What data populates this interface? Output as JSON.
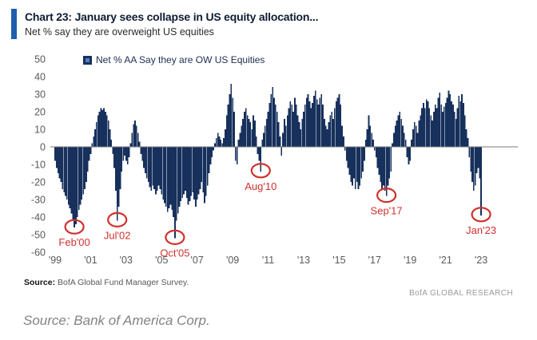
{
  "header": {
    "title": "Chart 23: January sees collapse in US equity allocation...",
    "subtitle": "Net % say they are overweight US equities"
  },
  "legend": {
    "label": "Net % AA Say they are OW US Equities"
  },
  "colors": {
    "accent_blue": "#1c5fac",
    "bar_navy": "#17305c",
    "annotation_red": "#d0312d",
    "axis_gray": "#7a7a7a",
    "tick_gray": "#595959"
  },
  "chart_data": {
    "type": "bar",
    "title": "Net % AA Say they are OW US Equities",
    "start_month": "1999-01",
    "end_month": "2023-01",
    "ylim": [
      -60,
      50
    ],
    "yticks": [
      50,
      40,
      30,
      20,
      10,
      0,
      -10,
      -20,
      -30,
      -40,
      -50,
      -60
    ],
    "xtick_labels": [
      "'99",
      "'01",
      "'03",
      "'05",
      "'07",
      "'09",
      "'11",
      "'13",
      "'15",
      "'17",
      "'19",
      "'21",
      "'23"
    ],
    "xtick_interval_months": 24,
    "grid": false,
    "legend_position": "top-left",
    "values": [
      -8,
      -12,
      -15,
      -18,
      -20,
      -24,
      -26,
      -28,
      -30,
      -33,
      -35,
      -38,
      -42,
      -46,
      -44,
      -40,
      -36,
      -33,
      -30,
      -27,
      -24,
      -20,
      -14,
      -8,
      -4,
      2,
      6,
      10,
      14,
      18,
      20,
      22,
      21,
      22,
      20,
      18,
      15,
      10,
      4,
      -4,
      -12,
      -25,
      -42,
      -34,
      -24,
      -14,
      -8,
      -5,
      -8,
      -10,
      -6,
      2,
      8,
      13,
      15,
      12,
      8,
      3,
      -4,
      -8,
      -12,
      -15,
      -18,
      -20,
      -23,
      -25,
      -22,
      -24,
      -27,
      -25,
      -22,
      -24,
      -27,
      -30,
      -32,
      -34,
      -37,
      -35,
      -33,
      -36,
      -40,
      -52,
      -42,
      -38,
      -34,
      -31,
      -29,
      -27,
      -25,
      -29,
      -33,
      -31,
      -28,
      -26,
      -30,
      -34,
      -30,
      -27,
      -24,
      -20,
      -26,
      -32,
      -28,
      -22,
      -15,
      -10,
      -6,
      -2,
      2,
      5,
      8,
      6,
      4,
      2,
      5,
      10,
      18,
      24,
      30,
      36,
      28,
      20,
      -8,
      -10,
      4,
      8,
      12,
      16,
      20,
      22,
      18,
      16,
      14,
      10,
      18,
      15,
      6,
      -4,
      -8,
      -14,
      4,
      8,
      12,
      16,
      20,
      25,
      30,
      34,
      28,
      24,
      20,
      14,
      6,
      -5,
      8,
      16,
      12,
      18,
      22,
      26,
      24,
      20,
      28,
      24,
      18,
      14,
      10,
      16,
      20,
      24,
      28,
      30,
      26,
      22,
      25,
      29,
      32,
      27,
      24,
      28,
      30,
      24,
      16,
      12,
      10,
      14,
      18,
      20,
      16,
      22,
      26,
      28,
      30,
      24,
      12,
      6,
      -2,
      -8,
      -12,
      -16,
      -20,
      -22,
      -18,
      -24,
      -20,
      -24,
      -22,
      -18,
      -14,
      -8,
      4,
      10,
      18,
      12,
      8,
      4,
      -2,
      -6,
      -12,
      -16,
      -20,
      -24,
      -22,
      -25,
      -28,
      -22,
      -18,
      -14,
      2,
      8,
      12,
      15,
      18,
      20,
      16,
      12,
      8,
      4,
      -6,
      -10,
      -8,
      4,
      10,
      14,
      12,
      8,
      15,
      18,
      22,
      25,
      22,
      27,
      26,
      22,
      18,
      15,
      20,
      24,
      22,
      28,
      31,
      24,
      20,
      23,
      25,
      28,
      32,
      30,
      26,
      24,
      20,
      16,
      22,
      29,
      26,
      30,
      25,
      18,
      10,
      5,
      -6,
      -14,
      -20,
      -25,
      -22,
      -15,
      -12,
      -18,
      -39
    ],
    "annotations": [
      {
        "label": "Feb'00",
        "month": "2000-02",
        "value": -46
      },
      {
        "label": "Jul'02",
        "month": "2002-07",
        "value": -42
      },
      {
        "label": "Oct'05",
        "month": "2005-10",
        "value": -52
      },
      {
        "label": "Aug'10",
        "month": "2010-08",
        "value": -14
      },
      {
        "label": "Sep'17",
        "month": "2017-09",
        "value": -28
      },
      {
        "label": "Jan'23",
        "month": "2023-01",
        "value": -39
      }
    ]
  },
  "footer": {
    "source_label": "Source:",
    "source_text": "BofA Global Fund Manager Survey.",
    "brand": "BofA GLOBAL RESEARCH"
  },
  "caption": "Source: Bank of America Corp."
}
